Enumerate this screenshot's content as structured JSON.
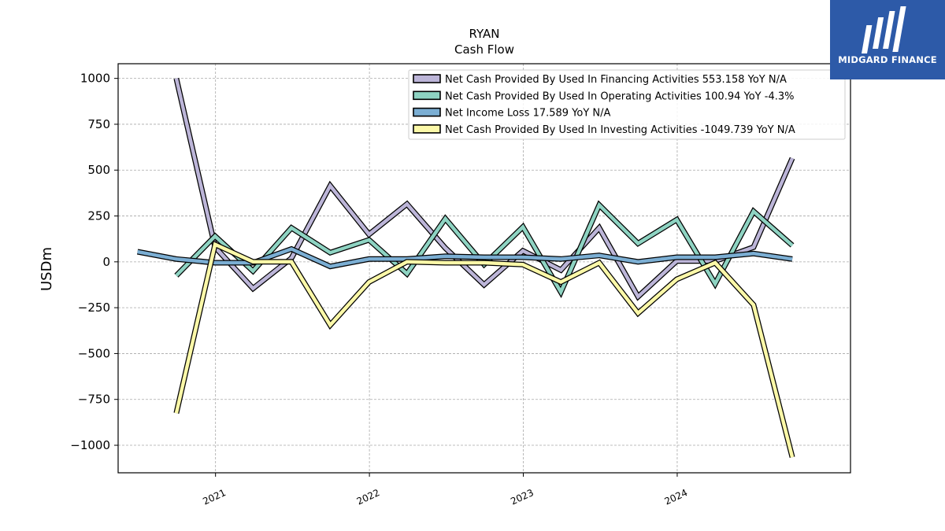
{
  "brand": {
    "name": "MIDGARD FINANCE",
    "color": "#2d5aa8"
  },
  "chart_data": {
    "type": "line",
    "title": "RYAN",
    "subtitle": "Cash Flow",
    "xlabel": "",
    "ylabel": "USDm",
    "ylim": [
      -1150,
      1080
    ],
    "xlim": [
      "2020-05-15",
      "2025-02-15"
    ],
    "x_ticks": [
      "2021",
      "2022",
      "2023",
      "2024"
    ],
    "y_ticks": [
      1000,
      750,
      500,
      250,
      0,
      -250,
      -500,
      -750,
      -1000
    ],
    "y_tick_labels": [
      "1000",
      "750",
      "500",
      "250",
      "0",
      "−250",
      "−500",
      "−750",
      "−1000"
    ],
    "grid": true,
    "legend_position": "top-right",
    "series": [
      {
        "name": "Net Cash Provided By Used In Financing Activities",
        "legend_label": "Net Cash Provided By Used In Financing Activities  553.158 YoY N/A",
        "color": "#bcb5d8",
        "x": [
          "2020-09-30",
          "2020-12-31",
          "2021-03-31",
          "2021-06-30",
          "2021-09-30",
          "2021-12-31",
          "2022-03-31",
          "2022-06-30",
          "2022-09-30",
          "2022-12-31",
          "2023-03-31",
          "2023-06-30",
          "2023-09-30",
          "2023-12-31",
          "2024-03-31",
          "2024-06-30",
          "2024-09-30"
        ],
        "values": [
          1000,
          80,
          -145,
          20,
          415,
          150,
          315,
          75,
          -125,
          60,
          -45,
          185,
          -190,
          5,
          5,
          80,
          565
        ]
      },
      {
        "name": "Net Cash Provided By Used In Operating Activities",
        "legend_label": "Net Cash Provided By Used In Operating Activities  100.94 YoY -4.3%",
        "color": "#8ed3c2",
        "x": [
          "2020-09-30",
          "2020-12-31",
          "2021-03-31",
          "2021-06-30",
          "2021-09-30",
          "2021-12-31",
          "2022-03-31",
          "2022-06-30",
          "2022-09-30",
          "2022-12-31",
          "2023-03-31",
          "2023-06-30",
          "2023-09-30",
          "2023-12-31",
          "2024-03-31",
          "2024-06-30",
          "2024-09-30"
        ],
        "values": [
          -75,
          140,
          -50,
          185,
          50,
          120,
          -65,
          235,
          -15,
          190,
          -165,
          310,
          100,
          230,
          -120,
          275,
          90
        ]
      },
      {
        "name": "Net Income Loss",
        "legend_label": "Net Income Loss  17.589 YoY N/A",
        "color": "#7baed3",
        "x": [
          "2020-06-30",
          "2020-09-30",
          "2020-12-31",
          "2021-03-31",
          "2021-06-30",
          "2021-09-30",
          "2021-12-31",
          "2022-03-31",
          "2022-06-30",
          "2022-09-30",
          "2022-12-31",
          "2023-03-31",
          "2023-06-30",
          "2023-09-30",
          "2023-12-31",
          "2024-03-31",
          "2024-06-30",
          "2024-09-30"
        ],
        "values": [
          55,
          15,
          -5,
          -5,
          70,
          -25,
          15,
          15,
          30,
          25,
          25,
          15,
          35,
          0,
          25,
          25,
          45,
          15
        ]
      },
      {
        "name": "Net Cash Provided By Used In Investing Activities",
        "legend_label": "Net Cash Provided By Used In Investing Activities  -1049.739 YoY N/A",
        "color": "#fbf8a8",
        "x": [
          "2020-09-30",
          "2020-12-31",
          "2021-03-31",
          "2021-06-30",
          "2021-09-30",
          "2021-12-31",
          "2022-03-31",
          "2022-06-30",
          "2022-09-30",
          "2022-12-31",
          "2023-03-31",
          "2023-06-30",
          "2023-09-30",
          "2023-12-31",
          "2024-03-31",
          "2024-06-30",
          "2024-09-30"
        ],
        "values": [
          -825,
          95,
          0,
          0,
          -345,
          -110,
          0,
          -5,
          -5,
          -15,
          -110,
          -5,
          -280,
          -95,
          -5,
          -235,
          -1065
        ]
      }
    ]
  }
}
